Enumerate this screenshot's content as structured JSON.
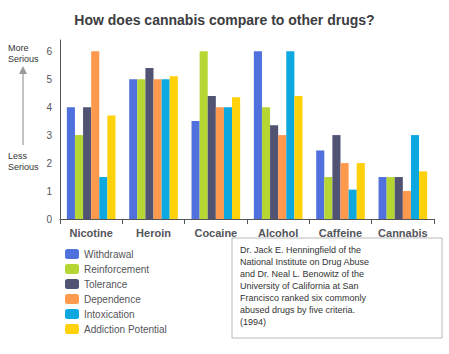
{
  "chart_data": {
    "type": "bar",
    "title": "How does cannabis compare to other drugs?",
    "categories": [
      "Nicotine",
      "Heroin",
      "Cocaine",
      "Alcohol",
      "Caffeine",
      "Cannabis"
    ],
    "series": [
      {
        "name": "Withdrawal",
        "values": [
          4.0,
          5.0,
          3.5,
          6.0,
          2.45,
          1.5
        ]
      },
      {
        "name": "Reinforcement",
        "values": [
          3.0,
          5.0,
          6.0,
          4.0,
          1.5,
          1.5
        ]
      },
      {
        "name": "Tolerance",
        "values": [
          4.0,
          5.4,
          4.4,
          3.35,
          3.0,
          1.5
        ]
      },
      {
        "name": "Dependence",
        "values": [
          6.0,
          5.0,
          4.0,
          3.0,
          2.0,
          1.0
        ]
      },
      {
        "name": "Intoxication",
        "values": [
          1.5,
          5.0,
          4.0,
          6.0,
          1.05,
          3.0
        ]
      },
      {
        "name": "Addiction Potential",
        "values": [
          3.7,
          5.1,
          4.35,
          4.4,
          2.0,
          1.7
        ]
      }
    ],
    "ylim": [
      0,
      6.4
    ],
    "yticks": [
      0,
      1,
      2,
      3,
      4,
      5,
      6
    ],
    "grid": false,
    "legend": "lower left",
    "annotations": [
      "More\nSerious",
      "Less\nSerious",
      "Dr. Jack E. Henningfield of the\nNational Institute on Drug Abuse\nand Dr. Neal L. Benowitz of the\nUniversity of California at San\nFrancisco ranked six commonly\nabused drugs by five criteria.\n(1994)"
    ]
  }
}
